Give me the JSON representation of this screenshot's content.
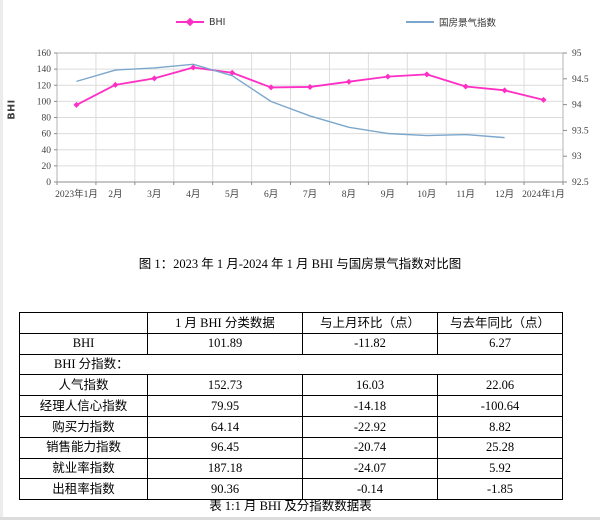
{
  "figure_caption": "图 1：2023 年 1 月-2024 年 1 月 BHI 与国房景气指数对比图",
  "chart_data": {
    "type": "line",
    "title": "图 1：2023 年 1 月-2024 年 1 月 BHI 与国房景气指数对比图",
    "categories": [
      "2023年1月",
      "2月",
      "3月",
      "4月",
      "5月",
      "6月",
      "7月",
      "8月",
      "9月",
      "10月",
      "11月",
      "12月",
      "2024年1月"
    ],
    "series": [
      {
        "name": "BHI",
        "axis": "left",
        "color": "#ff2ec4",
        "marker": true,
        "values": [
          95.62,
          120.5,
          128.5,
          142.0,
          135.5,
          117.3,
          117.9,
          124.4,
          130.7,
          133.5,
          118.5,
          113.71,
          101.89
        ]
      },
      {
        "name": "国房景气指数",
        "axis": "right",
        "color": "#7ba7cc",
        "marker": false,
        "values": [
          94.45,
          94.67,
          94.71,
          94.78,
          94.56,
          94.06,
          93.78,
          93.56,
          93.44,
          93.4,
          93.42,
          93.36
        ]
      }
    ],
    "left_axis": {
      "title": "BHI",
      "min": 0,
      "max": 160,
      "tick_labels": [
        "0",
        "20",
        "40",
        "60",
        "80",
        "100",
        "120",
        "140",
        "160"
      ]
    },
    "right_axis": {
      "min": 92.5,
      "max": 95,
      "tick_labels": [
        "92.5",
        "93",
        "93.5",
        "94",
        "94.5",
        "95"
      ]
    },
    "grid": true,
    "legend_position": "top"
  },
  "table": {
    "headers": [
      "",
      "1 月 BHI 分类数据",
      "与上月环比（点）",
      "与去年同比（点）"
    ],
    "rows": [
      {
        "cells": [
          "BHI",
          "101.89",
          "-11.82",
          "6.27"
        ]
      },
      {
        "span_label": "BHI 分指数："
      },
      {
        "cells": [
          "人气指数",
          "152.73",
          "16.03",
          "22.06"
        ]
      },
      {
        "cells": [
          "经理人信心指数",
          "79.95",
          "-14.18",
          "-100.64"
        ]
      },
      {
        "cells": [
          "购买力指数",
          "64.14",
          "-22.92",
          "8.82"
        ]
      },
      {
        "cells": [
          "销售能力指数",
          "96.45",
          "-20.74",
          "25.28"
        ]
      },
      {
        "cells": [
          "就业率指数",
          "187.18",
          "-24.07",
          "5.92"
        ]
      },
      {
        "cells": [
          "出租率指数",
          "90.36",
          "-0.14",
          "-1.85"
        ]
      }
    ],
    "caption": "表 1:1 月 BHI 及分指数数据表"
  }
}
